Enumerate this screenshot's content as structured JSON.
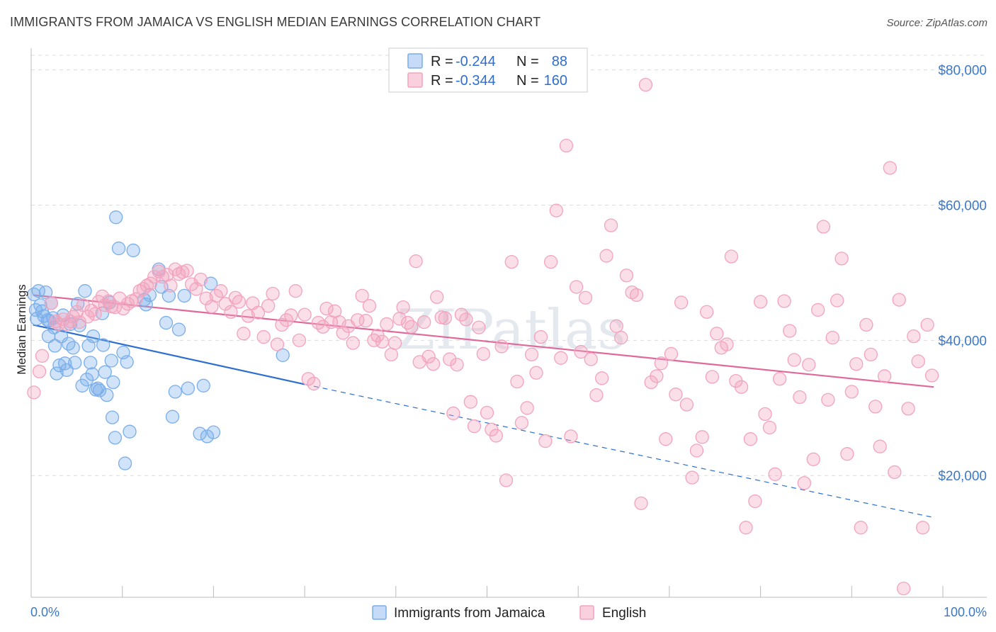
{
  "title": "IMMIGRANTS FROM JAMAICA VS ENGLISH MEDIAN EARNINGS CORRELATION CHART",
  "source": "Source: ZipAtlas.com",
  "watermark": "ZIPatlas",
  "legend": {
    "r_label": "R =",
    "n_label": "N =",
    "rows": [
      {
        "r": "-0.244",
        "n": "88",
        "color": "#7aaeea"
      },
      {
        "r": "-0.344",
        "n": "160",
        "color": "#f2a3be"
      }
    ]
  },
  "chart_data": {
    "type": "scatter",
    "ylabel": "Median Earnings",
    "xlim": [
      0,
      100
    ],
    "ylim": [
      2000,
      83000
    ],
    "x_tick_labels": [
      "0.0%",
      "100.0%"
    ],
    "y_ticks": [
      {
        "value": 20000,
        "label": "$20,000"
      },
      {
        "value": 40000,
        "label": "$40,000"
      },
      {
        "value": 60000,
        "label": "$60,000"
      },
      {
        "value": 80000,
        "label": "$80,000"
      }
    ],
    "grid": "horizontal dashed",
    "series": [
      {
        "name": "Immigrants from Jamaica",
        "color": "#7aaeea",
        "line_color": "#2c6fd0",
        "trend": {
          "x0": 0.2,
          "y0": 42300,
          "x1": 30,
          "y1": 33500,
          "dash_to_x": 99,
          "dash_to_y": 13800
        },
        "points": [
          [
            0.3,
            46800
          ],
          [
            0.5,
            44500
          ],
          [
            0.6,
            43200
          ],
          [
            0.8,
            47300
          ],
          [
            1.0,
            45200
          ],
          [
            1.2,
            44300
          ],
          [
            1.4,
            43600
          ],
          [
            1.6,
            47100
          ],
          [
            1.8,
            43000
          ],
          [
            1.9,
            40600
          ],
          [
            2.0,
            42900
          ],
          [
            2.2,
            45500
          ],
          [
            2.4,
            43300
          ],
          [
            2.5,
            41900
          ],
          [
            2.6,
            39200
          ],
          [
            2.8,
            35100
          ],
          [
            3.1,
            36300
          ],
          [
            3.3,
            40600
          ],
          [
            3.5,
            43700
          ],
          [
            3.7,
            36600
          ],
          [
            3.9,
            35600
          ],
          [
            4.1,
            39500
          ],
          [
            4.3,
            42400
          ],
          [
            4.6,
            38900
          ],
          [
            4.8,
            36700
          ],
          [
            5.1,
            45400
          ],
          [
            5.3,
            42200
          ],
          [
            5.6,
            33300
          ],
          [
            5.9,
            47300
          ],
          [
            6.1,
            34200
          ],
          [
            6.3,
            39200
          ],
          [
            6.5,
            36700
          ],
          [
            6.7,
            35000
          ],
          [
            6.8,
            40600
          ],
          [
            7.1,
            32700
          ],
          [
            7.3,
            32900
          ],
          [
            7.5,
            32600
          ],
          [
            7.8,
            44000
          ],
          [
            7.9,
            39300
          ],
          [
            8.1,
            35300
          ],
          [
            8.3,
            31900
          ],
          [
            8.6,
            45600
          ],
          [
            8.8,
            37000
          ],
          [
            8.9,
            28600
          ],
          [
            9.0,
            33800
          ],
          [
            9.2,
            25600
          ],
          [
            9.3,
            58200
          ],
          [
            9.6,
            53600
          ],
          [
            10.1,
            38200
          ],
          [
            10.3,
            21800
          ],
          [
            10.5,
            36800
          ],
          [
            10.8,
            26500
          ],
          [
            11.2,
            53300
          ],
          [
            12.4,
            46000
          ],
          [
            12.6,
            45300
          ],
          [
            13.0,
            46700
          ],
          [
            14.0,
            50500
          ],
          [
            14.3,
            47900
          ],
          [
            14.8,
            42600
          ],
          [
            15.1,
            46600
          ],
          [
            15.5,
            28700
          ],
          [
            15.8,
            32400
          ],
          [
            16.2,
            41600
          ],
          [
            16.8,
            46600
          ],
          [
            17.2,
            32900
          ],
          [
            18.5,
            26200
          ],
          [
            18.9,
            33300
          ],
          [
            19.3,
            25800
          ],
          [
            19.7,
            48400
          ],
          [
            20.0,
            26400
          ],
          [
            27.6,
            37800
          ]
        ]
      },
      {
        "name": "English",
        "color": "#f2a3be",
        "line_color": "#e0699a",
        "trend": {
          "x0": 0.2,
          "y0": 46700,
          "x1": 99,
          "y1": 33100
        },
        "points": [
          [
            0.3,
            32300
          ],
          [
            0.9,
            35400
          ],
          [
            1.2,
            37700
          ],
          [
            2.2,
            45500
          ],
          [
            2.7,
            42800
          ],
          [
            3.0,
            42400
          ],
          [
            3.5,
            43100
          ],
          [
            3.9,
            42400
          ],
          [
            4.3,
            42800
          ],
          [
            4.6,
            43500
          ],
          [
            5.0,
            44200
          ],
          [
            5.3,
            42700
          ],
          [
            5.7,
            45200
          ],
          [
            6.2,
            43500
          ],
          [
            6.6,
            44400
          ],
          [
            7.0,
            43900
          ],
          [
            7.4,
            45700
          ],
          [
            7.8,
            46500
          ],
          [
            8.1,
            45200
          ],
          [
            8.5,
            45800
          ],
          [
            8.8,
            45000
          ],
          [
            9.2,
            44900
          ],
          [
            9.7,
            46200
          ],
          [
            10.1,
            44700
          ],
          [
            10.6,
            45400
          ],
          [
            11.0,
            45800
          ],
          [
            11.5,
            46100
          ],
          [
            11.9,
            47300
          ],
          [
            12.3,
            47600
          ],
          [
            12.7,
            48100
          ],
          [
            13.1,
            48400
          ],
          [
            13.5,
            49400
          ],
          [
            14.0,
            50200
          ],
          [
            14.4,
            49400
          ],
          [
            14.9,
            49700
          ],
          [
            15.3,
            48100
          ],
          [
            15.8,
            50500
          ],
          [
            16.2,
            49800
          ],
          [
            16.6,
            50100
          ],
          [
            17.1,
            50300
          ],
          [
            17.6,
            48300
          ],
          [
            18.1,
            47600
          ],
          [
            18.6,
            49000
          ],
          [
            19.2,
            46200
          ],
          [
            19.8,
            45000
          ],
          [
            20.3,
            46600
          ],
          [
            20.8,
            47300
          ],
          [
            21.3,
            45400
          ],
          [
            21.9,
            44200
          ],
          [
            22.4,
            46300
          ],
          [
            22.8,
            45700
          ],
          [
            23.3,
            41000
          ],
          [
            23.8,
            43600
          ],
          [
            24.3,
            45500
          ],
          [
            24.9,
            44100
          ],
          [
            25.5,
            40500
          ],
          [
            26.0,
            45100
          ],
          [
            26.5,
            46900
          ],
          [
            27.0,
            39400
          ],
          [
            27.5,
            42300
          ],
          [
            28.0,
            43000
          ],
          [
            28.5,
            43700
          ],
          [
            29.0,
            47300
          ],
          [
            29.4,
            40000
          ],
          [
            30.0,
            43800
          ],
          [
            30.4,
            34300
          ],
          [
            31.0,
            33600
          ],
          [
            31.5,
            42600
          ],
          [
            32.0,
            42000
          ],
          [
            32.4,
            44700
          ],
          [
            32.9,
            42700
          ],
          [
            33.3,
            44300
          ],
          [
            33.8,
            42700
          ],
          [
            34.2,
            41100
          ],
          [
            34.8,
            42100
          ],
          [
            35.3,
            39600
          ],
          [
            35.8,
            43000
          ],
          [
            36.3,
            46600
          ],
          [
            36.7,
            42900
          ],
          [
            37.1,
            45100
          ],
          [
            37.6,
            40000
          ],
          [
            38.0,
            40700
          ],
          [
            38.5,
            39800
          ],
          [
            39.0,
            42400
          ],
          [
            39.5,
            37900
          ],
          [
            39.9,
            39600
          ],
          [
            40.4,
            43200
          ],
          [
            40.8,
            44900
          ],
          [
            41.3,
            42600
          ],
          [
            41.7,
            42000
          ],
          [
            42.2,
            51700
          ],
          [
            42.6,
            36800
          ],
          [
            43.1,
            42700
          ],
          [
            43.6,
            37600
          ],
          [
            44.1,
            36500
          ],
          [
            44.5,
            46400
          ],
          [
            45.0,
            43400
          ],
          [
            45.4,
            43300
          ],
          [
            45.9,
            37200
          ],
          [
            46.3,
            29200
          ],
          [
            46.7,
            36400
          ],
          [
            47.2,
            43800
          ],
          [
            47.7,
            43100
          ],
          [
            48.2,
            30900
          ],
          [
            48.6,
            27300
          ],
          [
            49.1,
            41900
          ],
          [
            49.6,
            38000
          ],
          [
            50.0,
            29300
          ],
          [
            50.5,
            26800
          ],
          [
            51.0,
            25900
          ],
          [
            51.6,
            39100
          ],
          [
            52.1,
            19300
          ],
          [
            52.7,
            51600
          ],
          [
            53.3,
            33900
          ],
          [
            53.8,
            27800
          ],
          [
            54.4,
            30000
          ],
          [
            54.9,
            37900
          ],
          [
            55.4,
            35200
          ],
          [
            55.9,
            40500
          ],
          [
            56.4,
            25100
          ],
          [
            57.0,
            51600
          ],
          [
            57.6,
            59200
          ],
          [
            58.1,
            37400
          ],
          [
            58.7,
            68800
          ],
          [
            59.2,
            25800
          ],
          [
            59.8,
            47900
          ],
          [
            60.3,
            38300
          ],
          [
            60.8,
            46300
          ],
          [
            61.4,
            37200
          ],
          [
            62.0,
            31900
          ],
          [
            62.6,
            34400
          ],
          [
            63.1,
            52500
          ],
          [
            63.6,
            57000
          ],
          [
            64.2,
            42100
          ],
          [
            64.7,
            40400
          ],
          [
            65.3,
            49600
          ],
          [
            65.9,
            47100
          ],
          [
            66.4,
            46700
          ],
          [
            66.9,
            15900
          ],
          [
            67.4,
            77800
          ],
          [
            68.0,
            33800
          ],
          [
            68.6,
            34700
          ],
          [
            69.1,
            36600
          ],
          [
            69.6,
            25400
          ],
          [
            70.2,
            38000
          ],
          [
            70.7,
            32000
          ],
          [
            71.3,
            45600
          ],
          [
            71.9,
            30500
          ],
          [
            72.5,
            19700
          ],
          [
            73.0,
            23700
          ],
          [
            73.6,
            25700
          ],
          [
            74.1,
            44200
          ],
          [
            74.7,
            34600
          ],
          [
            75.2,
            41000
          ],
          [
            75.7,
            38900
          ],
          [
            76.3,
            39400
          ],
          [
            76.8,
            52400
          ],
          [
            77.3,
            34000
          ],
          [
            77.9,
            33100
          ],
          [
            78.4,
            12300
          ],
          [
            78.9,
            25400
          ],
          [
            79.4,
            16200
          ],
          [
            80.0,
            45700
          ],
          [
            80.5,
            29100
          ],
          [
            81.0,
            27100
          ],
          [
            81.6,
            20200
          ],
          [
            82.1,
            34300
          ],
          [
            82.6,
            45800
          ],
          [
            83.2,
            41400
          ],
          [
            83.7,
            37100
          ],
          [
            84.3,
            31600
          ],
          [
            84.8,
            18900
          ],
          [
            85.3,
            36400
          ],
          [
            85.8,
            22400
          ],
          [
            86.3,
            44500
          ],
          [
            86.9,
            56800
          ],
          [
            87.4,
            31200
          ],
          [
            87.9,
            40400
          ],
          [
            88.4,
            45900
          ],
          [
            88.9,
            52100
          ],
          [
            89.5,
            23200
          ],
          [
            90.0,
            32400
          ],
          [
            90.5,
            36500
          ],
          [
            91.0,
            12300
          ],
          [
            91.6,
            42300
          ],
          [
            92.1,
            37900
          ],
          [
            92.6,
            30200
          ],
          [
            93.1,
            24300
          ],
          [
            93.6,
            34700
          ],
          [
            94.2,
            65500
          ],
          [
            94.7,
            20500
          ],
          [
            95.2,
            46000
          ],
          [
            95.7,
            3300
          ],
          [
            96.2,
            29900
          ],
          [
            96.8,
            40600
          ],
          [
            97.3,
            36900
          ],
          [
            97.8,
            12300
          ],
          [
            98.3,
            42300
          ],
          [
            98.8,
            34800
          ]
        ]
      }
    ]
  }
}
